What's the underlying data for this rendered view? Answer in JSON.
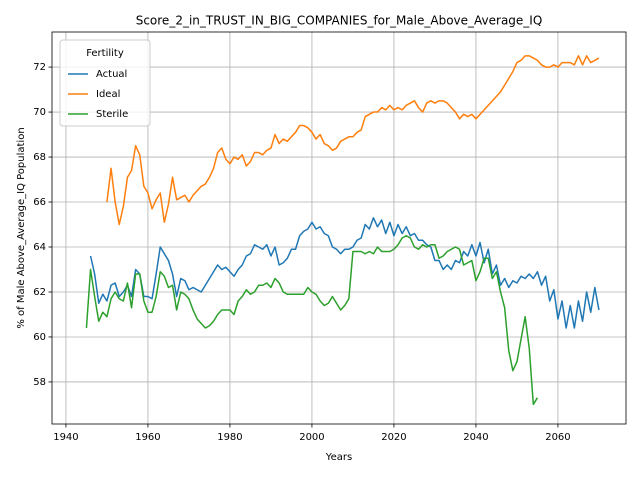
{
  "chart_data": {
    "type": "line",
    "title": "Score_2_in_TRUST_IN_BIG_COMPANIES_for_Male_Above_Average_IQ",
    "x_label": "Years",
    "y_label": "% of Male Above_Average_IQ Population",
    "legend_title": "Fertility",
    "legend": "upper left",
    "grid": true,
    "xlim": [
      1936.6,
      2076.6
    ],
    "ylim": [
      56.13,
      73.56
    ],
    "xticks": [
      1940,
      1960,
      1980,
      2000,
      2020,
      2040,
      2060
    ],
    "yticks": [
      58,
      60,
      62,
      64,
      66,
      68,
      70,
      72
    ],
    "x": [
      1945,
      1946,
      1947,
      1948,
      1949,
      1950,
      1951,
      1952,
      1953,
      1954,
      1955,
      1956,
      1957,
      1958,
      1959,
      1960,
      1961,
      1962,
      1963,
      1964,
      1965,
      1966,
      1967,
      1968,
      1969,
      1970,
      1971,
      1972,
      1973,
      1974,
      1975,
      1976,
      1977,
      1978,
      1979,
      1980,
      1981,
      1982,
      1983,
      1984,
      1985,
      1986,
      1987,
      1988,
      1989,
      1990,
      1991,
      1992,
      1993,
      1994,
      1995,
      1996,
      1997,
      1998,
      1999,
      2000,
      2001,
      2002,
      2003,
      2004,
      2005,
      2006,
      2007,
      2008,
      2009,
      2010,
      2011,
      2012,
      2013,
      2014,
      2015,
      2016,
      2017,
      2018,
      2019,
      2020,
      2021,
      2022,
      2023,
      2024,
      2025,
      2026,
      2027,
      2028,
      2029,
      2030,
      2031,
      2032,
      2033,
      2034,
      2035,
      2036,
      2037,
      2038,
      2039,
      2040,
      2041,
      2042,
      2043,
      2044,
      2045,
      2046,
      2047,
      2048,
      2049,
      2050,
      2051,
      2052,
      2053,
      2054,
      2055,
      2056,
      2057,
      2058,
      2059,
      2060,
      2061,
      2062,
      2063,
      2064,
      2065,
      2066,
      2067,
      2068,
      2069,
      2070
    ],
    "series": [
      {
        "name": "Actual",
        "color": "#1f77b4",
        "values": [
          null,
          63.6,
          62.8,
          61.5,
          61.9,
          61.6,
          62.3,
          62.4,
          61.8,
          62.0,
          62.3,
          61.8,
          63.0,
          62.8,
          61.8,
          61.8,
          61.7,
          62.8,
          64.0,
          63.7,
          63.4,
          62.8,
          61.8,
          62.6,
          62.5,
          62.1,
          62.2,
          62.1,
          62.0,
          62.3,
          62.6,
          62.9,
          63.2,
          63.0,
          63.1,
          62.9,
          62.7,
          63.0,
          63.2,
          63.6,
          63.7,
          64.1,
          64.0,
          63.9,
          64.1,
          63.6,
          64.0,
          63.2,
          63.3,
          63.5,
          63.9,
          63.9,
          64.5,
          64.7,
          64.8,
          65.1,
          64.8,
          64.9,
          64.6,
          64.5,
          64.0,
          63.9,
          63.7,
          63.9,
          63.9,
          64.0,
          64.3,
          64.4,
          65.0,
          64.8,
          65.3,
          64.9,
          65.2,
          64.6,
          65.1,
          64.5,
          65.0,
          64.6,
          64.9,
          64.5,
          64.6,
          64.3,
          64.3,
          64.1,
          64.0,
          63.4,
          63.4,
          63.0,
          63.2,
          63.0,
          63.4,
          63.3,
          63.8,
          63.6,
          64.1,
          63.6,
          64.2,
          63.3,
          63.9,
          62.8,
          63.2,
          62.3,
          62.6,
          62.2,
          62.5,
          62.4,
          62.7,
          62.6,
          62.8,
          62.6,
          62.9,
          62.3,
          62.7,
          61.6,
          62.1,
          60.8,
          61.6,
          60.4,
          61.4,
          60.4,
          61.6,
          60.7,
          62.0,
          61.1,
          62.2,
          61.2
        ]
      },
      {
        "name": "Ideal",
        "color": "#ff7f0e",
        "values": [
          null,
          null,
          null,
          null,
          null,
          66.0,
          67.5,
          66.0,
          65.0,
          65.8,
          67.1,
          67.4,
          68.5,
          68.1,
          66.7,
          66.4,
          65.7,
          66.1,
          66.4,
          65.1,
          65.9,
          67.1,
          66.1,
          66.2,
          66.3,
          66.0,
          66.3,
          66.5,
          66.7,
          66.8,
          67.1,
          67.5,
          68.2,
          68.4,
          67.9,
          67.7,
          68.0,
          67.9,
          68.1,
          67.6,
          67.8,
          68.2,
          68.2,
          68.1,
          68.3,
          68.4,
          69.0,
          68.6,
          68.8,
          68.7,
          68.9,
          69.1,
          69.4,
          69.4,
          69.3,
          69.1,
          68.8,
          69.0,
          68.6,
          68.5,
          68.3,
          68.4,
          68.7,
          68.8,
          68.9,
          68.9,
          69.1,
          69.2,
          69.8,
          69.9,
          70.0,
          70.0,
          70.2,
          70.1,
          70.3,
          70.1,
          70.2,
          70.1,
          70.3,
          70.4,
          70.5,
          70.2,
          70.0,
          70.4,
          70.5,
          70.4,
          70.5,
          70.5,
          70.4,
          70.2,
          70.0,
          69.7,
          69.9,
          69.8,
          69.9,
          69.7,
          69.9,
          70.1,
          70.3,
          70.5,
          70.7,
          70.9,
          71.2,
          71.5,
          71.8,
          72.2,
          72.3,
          72.5,
          72.5,
          72.4,
          72.3,
          72.1,
          72.0,
          72.0,
          72.1,
          72.0,
          72.2,
          72.2,
          72.2,
          72.1,
          72.5,
          72.1,
          72.5,
          72.2,
          72.3,
          72.4
        ]
      },
      {
        "name": "Sterile",
        "color": "#2ca02c",
        "values": [
          60.4,
          63.0,
          61.8,
          60.7,
          61.1,
          60.9,
          61.7,
          62.0,
          61.7,
          61.6,
          62.4,
          61.3,
          62.8,
          62.8,
          61.6,
          61.1,
          61.1,
          61.8,
          62.9,
          62.7,
          62.2,
          62.3,
          61.2,
          62.0,
          61.9,
          61.7,
          61.2,
          60.8,
          60.6,
          60.4,
          60.5,
          60.7,
          61.0,
          61.2,
          61.2,
          61.2,
          61.0,
          61.6,
          61.8,
          62.1,
          61.9,
          62.0,
          62.3,
          62.3,
          62.4,
          62.2,
          62.6,
          62.4,
          62.0,
          61.9,
          61.9,
          61.9,
          61.9,
          61.9,
          62.2,
          62.0,
          61.9,
          61.6,
          61.4,
          61.5,
          61.8,
          61.5,
          61.2,
          61.4,
          61.7,
          63.8,
          63.8,
          63.8,
          63.7,
          63.8,
          63.7,
          64.0,
          63.8,
          63.8,
          63.8,
          63.9,
          64.1,
          64.4,
          64.5,
          64.4,
          64.0,
          63.9,
          64.1,
          64.0,
          64.1,
          64.1,
          63.5,
          63.6,
          63.8,
          63.9,
          64.0,
          63.9,
          63.2,
          63.3,
          63.4,
          62.5,
          62.9,
          63.5,
          63.5,
          62.6,
          62.9,
          62.0,
          61.3,
          59.4,
          58.5,
          58.9,
          59.9,
          60.9,
          59.5,
          57.0,
          57.3,
          null,
          null,
          null,
          null,
          null,
          null,
          null,
          null,
          null,
          null,
          null,
          null,
          null,
          null,
          null
        ]
      }
    ]
  }
}
